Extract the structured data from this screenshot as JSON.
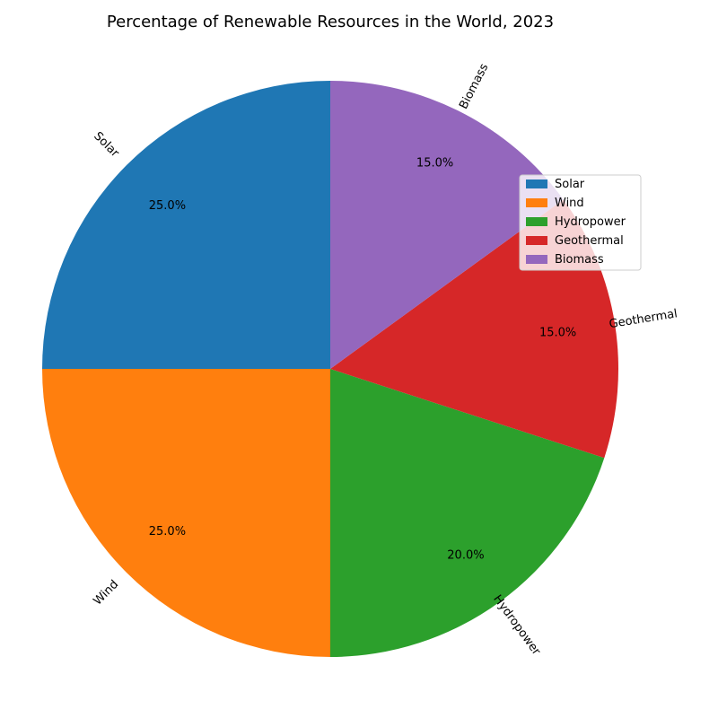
{
  "chart_data": {
    "type": "pie",
    "title": "Percentage of Renewable Resources in the World, 2023",
    "categories": [
      "Solar",
      "Wind",
      "Hydropower",
      "Geothermal",
      "Biomass"
    ],
    "values": [
      25,
      25,
      20,
      15,
      15
    ],
    "percent_labels": [
      "25.0%",
      "25.0%",
      "20.0%",
      "15.0%",
      "15.0%"
    ],
    "colors": [
      "#1f77b4",
      "#ff7f0e",
      "#2ca02c",
      "#d62728",
      "#9467bd"
    ],
    "start_angle": 90,
    "direction": "counterclockwise",
    "legend": {
      "placement": "upper-right",
      "entries": [
        "Solar",
        "Wind",
        "Hydropower",
        "Geothermal",
        "Biomass"
      ]
    }
  }
}
